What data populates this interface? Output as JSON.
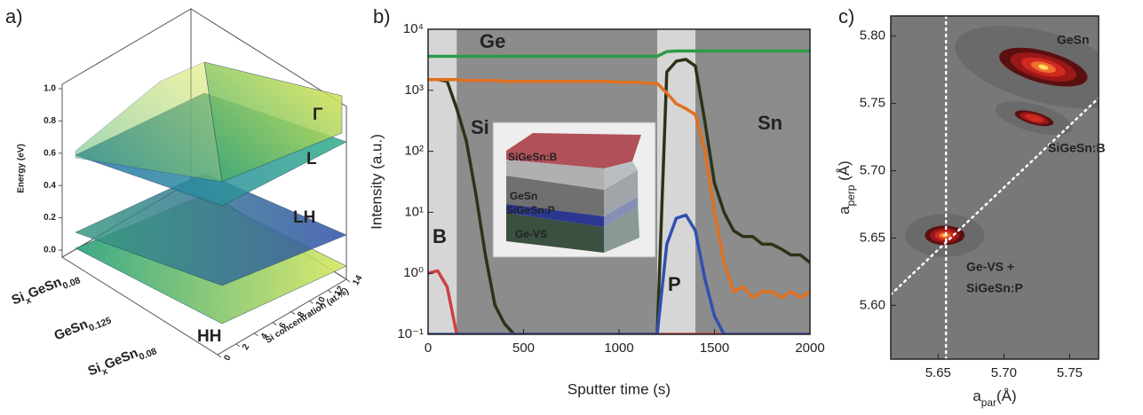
{
  "chart_data": [
    {
      "type": "surface3d",
      "panel_label": "a)",
      "zlabel": "Energy (eV)",
      "ylabel": "Si concentration (at.%)",
      "zlim": [
        0,
        1
      ],
      "zticks": [
        {
          "value": 0,
          "label": "0.0"
        },
        {
          "value": 0.2,
          "label": "0.2"
        },
        {
          "value": 0.4,
          "label": "0.4"
        },
        {
          "value": 0.6,
          "label": "0.6"
        },
        {
          "value": 0.8,
          "label": "0.8"
        },
        {
          "value": 1,
          "label": "1.0"
        }
      ],
      "ylim": [
        0,
        14
      ],
      "yticks": [
        0,
        2,
        4,
        6,
        8,
        10,
        12,
        14
      ],
      "categories": [
        [
          "Si",
          "x",
          "GeSn",
          "0.08"
        ],
        [
          "GeSn",
          "0.125"
        ],
        [
          "Si",
          "x",
          "GeSn",
          "0.08"
        ]
      ],
      "bands": [
        "Γ",
        "L",
        "LH",
        "HH"
      ]
    },
    {
      "type": "line",
      "panel_label": "b)",
      "xlabel": "Sputter time (s)",
      "ylabel": "Intensity (a.u.)",
      "yscale": "log",
      "xlim": [
        0,
        2000
      ],
      "xticks": [
        0,
        500,
        1000,
        1500,
        2000
      ],
      "ylim": [
        0.1,
        10000
      ],
      "yticks": [
        {
          "value": 0.1,
          "label": "10⁻¹"
        },
        {
          "value": 1,
          "label": "10⁰"
        },
        {
          "value": 10,
          "label": "10¹"
        },
        {
          "value": 100,
          "label": "10²"
        },
        {
          "value": 1000,
          "label": "10³"
        },
        {
          "value": 10000,
          "label": "10⁴"
        }
      ],
      "shaded_regions": [
        [
          0,
          150
        ],
        [
          1200,
          1400
        ]
      ],
      "inset_labels": [
        "SiGeSn:B",
        "GeSn",
        "SiGeSn:P",
        "Ge-VS"
      ],
      "x": [
        0,
        50,
        100,
        150,
        200,
        250,
        300,
        350,
        400,
        450,
        500,
        550,
        600,
        650,
        700,
        750,
        800,
        850,
        900,
        950,
        1000,
        1050,
        1100,
        1150,
        1200,
        1250,
        1300,
        1350,
        1400,
        1450,
        1500,
        1550,
        1600,
        1650,
        1700,
        1750,
        1800,
        1850,
        1900,
        1950,
        2000
      ],
      "series": [
        {
          "name": "Ge",
          "color": "#2e9a48",
          "values": [
            3600,
            3600,
            3600,
            3600,
            3600,
            3600,
            3600,
            3600,
            3600,
            3600,
            3600,
            3600,
            3600,
            3600,
            3600,
            3600,
            3600,
            3600,
            3600,
            3600,
            3600,
            3600,
            3600,
            3600,
            3600,
            4300,
            4400,
            4400,
            4400,
            4400,
            4400,
            4400,
            4400,
            4400,
            4400,
            4400,
            4400,
            4400,
            4400,
            4400,
            4400
          ]
        },
        {
          "name": "Si",
          "color": "#2c3318",
          "values": [
            1500,
            1500,
            1400,
            500,
            150,
            20,
            2,
            0.3,
            0.15,
            0.1,
            0.1,
            0.1,
            0.1,
            0.1,
            0.1,
            0.1,
            0.1,
            0.1,
            0.1,
            0.1,
            0.1,
            0.1,
            0.1,
            0.1,
            0.1,
            2000,
            3000,
            3200,
            2500,
            300,
            30,
            10,
            5,
            4,
            4,
            3,
            3,
            2.5,
            2,
            2,
            1.5
          ]
        },
        {
          "name": "Sn",
          "color": "#e07020",
          "values": [
            1500,
            1500,
            1500,
            1500,
            1450,
            1450,
            1450,
            1450,
            1400,
            1400,
            1400,
            1400,
            1400,
            1400,
            1400,
            1400,
            1400,
            1400,
            1400,
            1400,
            1350,
            1350,
            1350,
            1300,
            1300,
            900,
            600,
            500,
            400,
            100,
            10,
            1.5,
            0.5,
            0.6,
            0.4,
            0.5,
            0.5,
            0.4,
            0.5,
            0.4,
            0.5
          ]
        },
        {
          "name": "B",
          "color": "#d04040",
          "values": [
            1,
            1.1,
            0.6,
            0.1,
            0.1,
            0.1,
            0.1,
            0.1,
            0.1,
            0.1,
            0.1,
            0.1,
            0.1,
            0.1,
            0.1,
            0.1,
            0.1,
            0.1,
            0.1,
            0.1,
            0.1,
            0.1,
            0.1,
            0.1,
            0.1,
            0.1,
            0.1,
            0.1,
            0.1,
            0.1,
            0.1,
            0.1,
            0.1,
            0.1,
            0.1,
            0.1,
            0.1,
            0.1,
            0.1,
            0.1,
            0.1
          ]
        },
        {
          "name": "P",
          "color": "#3050b0",
          "values": [
            0.1,
            0.1,
            0.1,
            0.1,
            0.1,
            0.1,
            0.1,
            0.1,
            0.1,
            0.1,
            0.1,
            0.1,
            0.1,
            0.1,
            0.1,
            0.1,
            0.1,
            0.1,
            0.1,
            0.1,
            0.1,
            0.1,
            0.1,
            0.1,
            0.1,
            3,
            8,
            9,
            5,
            0.8,
            0.2,
            0.1,
            0.1,
            0.1,
            0.1,
            0.1,
            0.1,
            0.1,
            0.1,
            0.1,
            0.1
          ]
        }
      ]
    },
    {
      "type": "density_map",
      "panel_label": "c)",
      "xlabel": [
        "a",
        "par",
        "(Å)"
      ],
      "ylabel": [
        "a",
        "perp",
        " (Å)"
      ],
      "xlim": [
        5.614,
        5.772
      ],
      "xticks": [
        {
          "value": 5.65,
          "label": "5.65"
        },
        {
          "value": 5.7,
          "label": "5.70"
        },
        {
          "value": 5.75,
          "label": "5.75"
        }
      ],
      "ylim": [
        5.56,
        5.815
      ],
      "yticks": [
        {
          "value": 5.6,
          "label": "5.60"
        },
        {
          "value": 5.65,
          "label": "5.65"
        },
        {
          "value": 5.7,
          "label": "5.70"
        },
        {
          "value": 5.75,
          "label": "5.75"
        },
        {
          "value": 5.8,
          "label": "5.80"
        }
      ],
      "vertical_line": 5.656,
      "diagonal_line": [
        [
          5.614,
          5.608
        ],
        [
          5.772,
          5.754
        ]
      ],
      "peaks": [
        {
          "label": [
            "GeSn"
          ],
          "x": 5.73,
          "y": 5.777
        },
        {
          "label": [
            "SiGeSn:B"
          ],
          "x": 5.723,
          "y": 5.739
        },
        {
          "label": [
            "Ge-VS +",
            "SiGeSn:P"
          ],
          "x": 5.655,
          "y": 5.652
        }
      ]
    }
  ]
}
